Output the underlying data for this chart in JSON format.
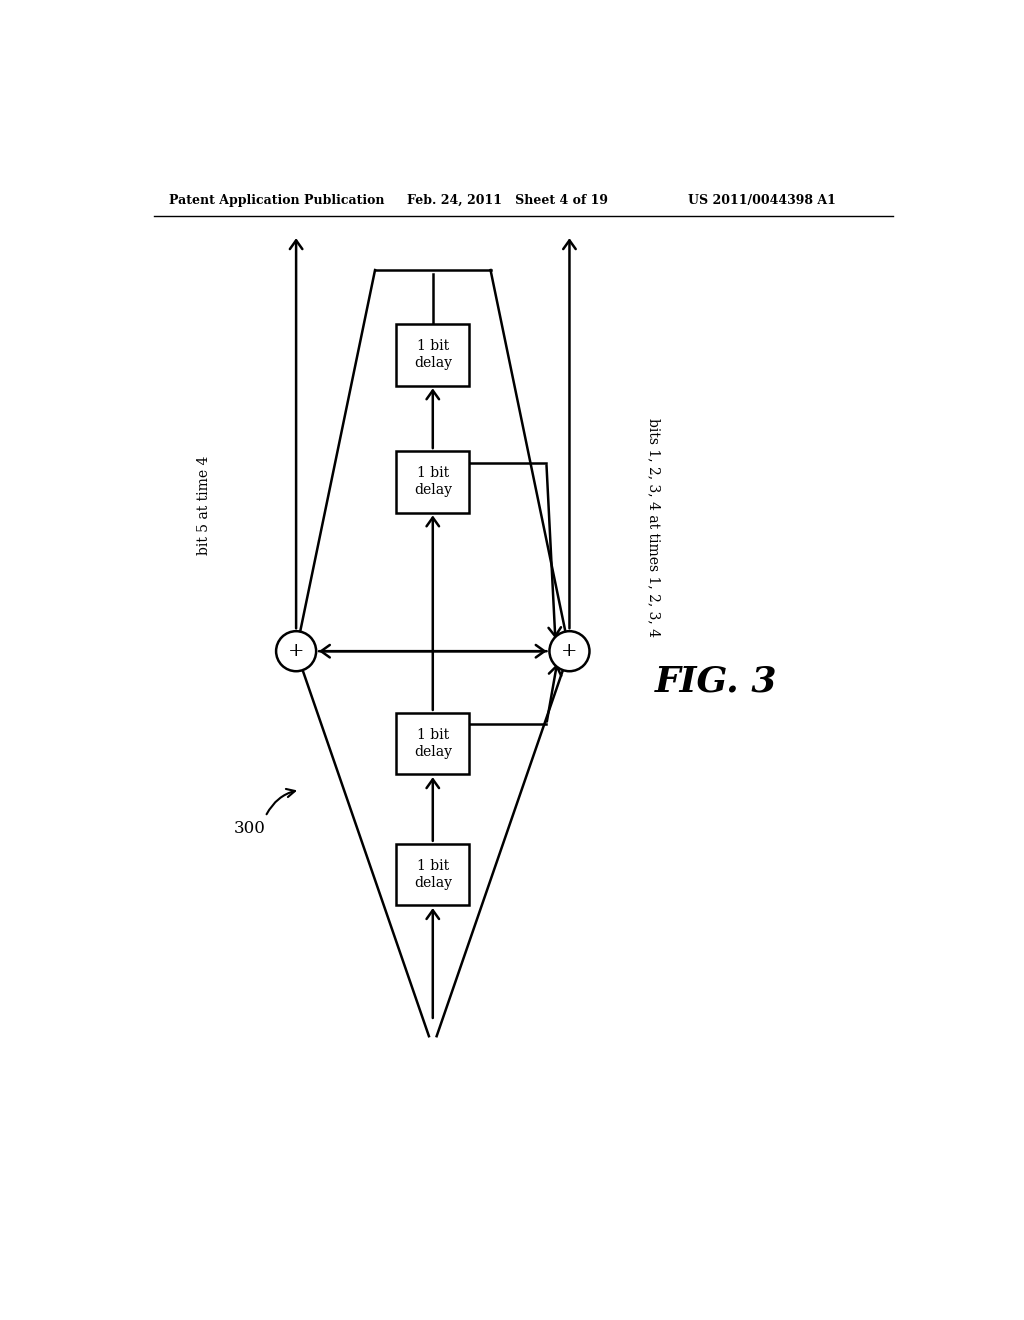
{
  "background_color": "#ffffff",
  "header_left": "Patent Application Publication",
  "header_center": "Feb. 24, 2011   Sheet 4 of 19",
  "header_right": "US 2011/0044398 A1",
  "fig_label": "FIG. 3",
  "diagram_label": "300",
  "label_left": "bit 5 at time 4",
  "label_right": "bits 1, 2, 3, 4 at times 1, 2, 3, 4",
  "box_label": "1 bit\ndelay",
  "circle_label": "+",
  "lw": 1.8
}
